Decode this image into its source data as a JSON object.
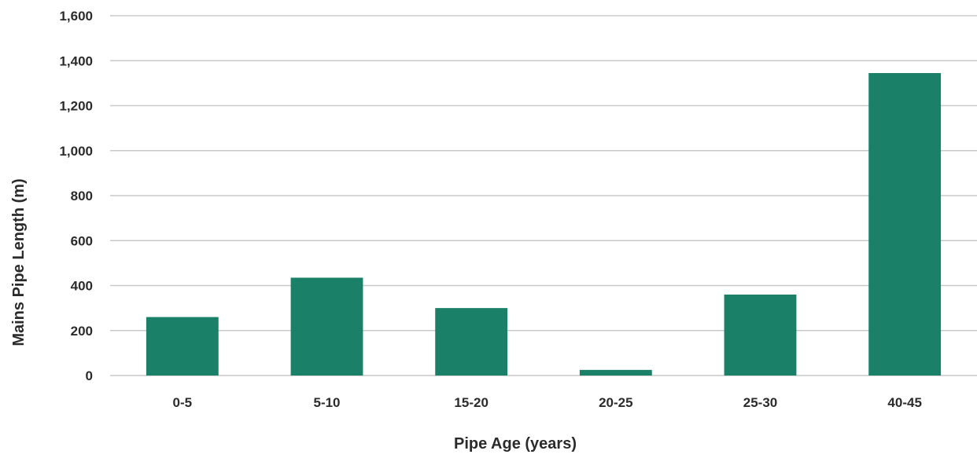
{
  "chart_data": {
    "type": "bar",
    "title": "",
    "xlabel": "Pipe Age (years)",
    "ylabel": "Mains Pipe Length (m)",
    "categories": [
      "0-5",
      "5-10",
      "15-20",
      "20-25",
      "25-30",
      "40-45"
    ],
    "values": [
      260,
      435,
      300,
      25,
      360,
      1345
    ],
    "ylim": [
      0,
      1600
    ],
    "yticks": [
      0,
      200,
      400,
      600,
      800,
      1000,
      1200,
      1400,
      1600
    ],
    "ytick_labels": [
      "0",
      "200",
      "400",
      "600",
      "800",
      "1,000",
      "1,200",
      "1,400",
      "1,600"
    ],
    "grid": true,
    "legend": "none",
    "colors": {
      "bar": "#1b8068",
      "grid": "#c9c9c9",
      "text": "#2b2b2b"
    }
  }
}
